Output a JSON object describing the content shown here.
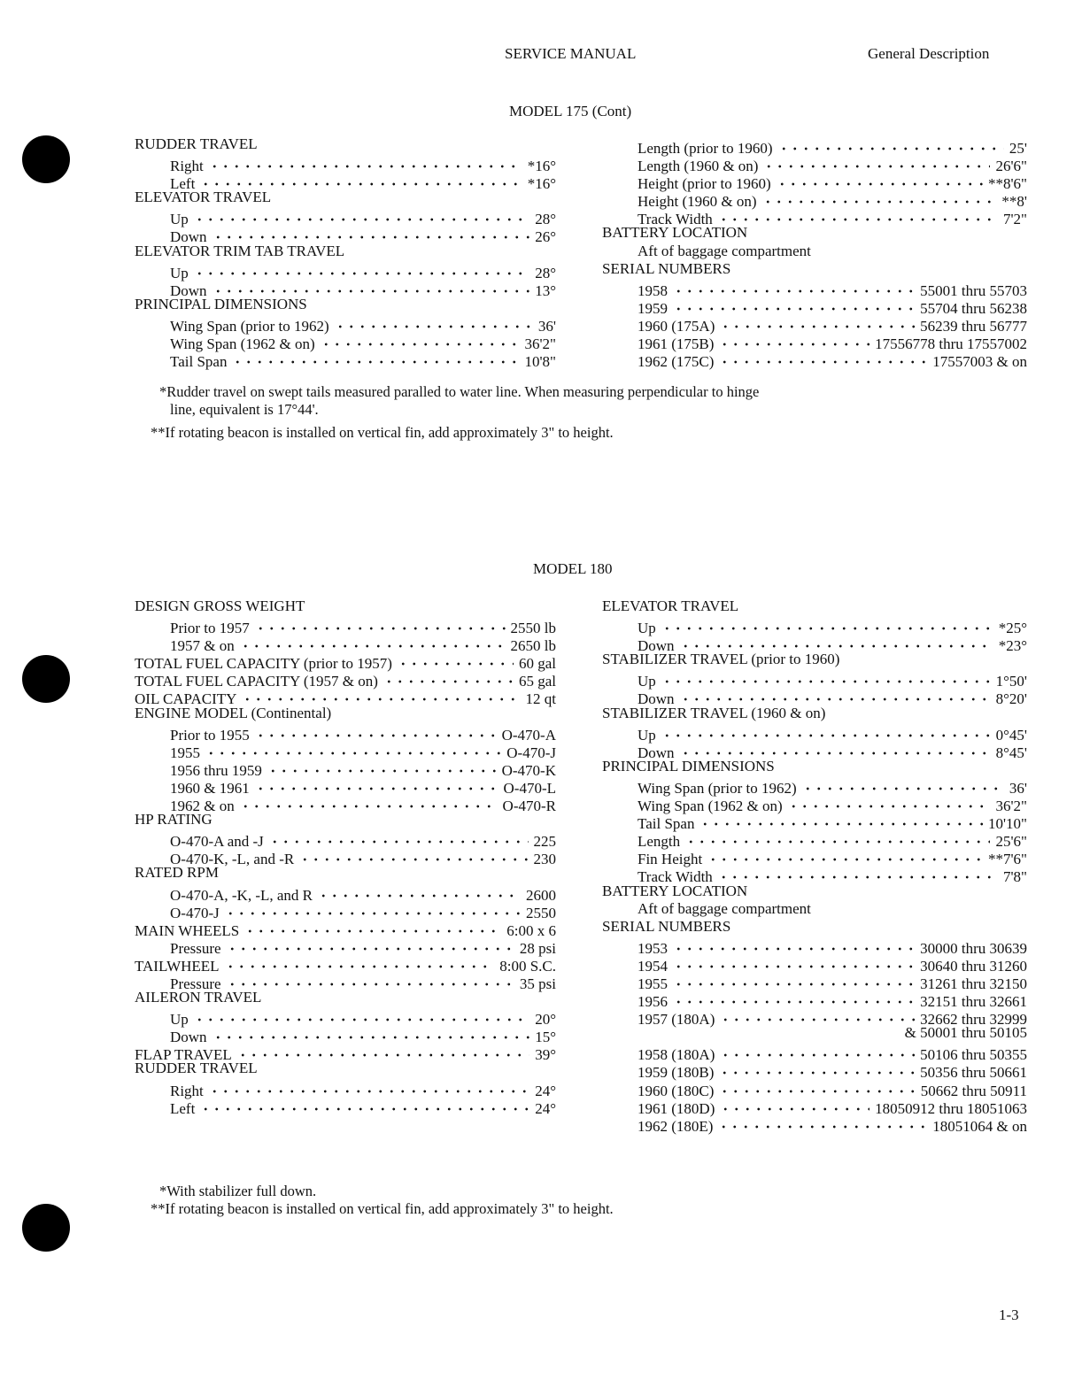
{
  "header": {
    "title": "SERVICE MANUAL",
    "section": "General Description"
  },
  "model175": {
    "title": "MODEL 175 (Cont)",
    "left": [
      {
        "label": "RUDDER TRAVEL",
        "head": true
      },
      {
        "label": "Right",
        "value": "*16°",
        "indent": 1
      },
      {
        "label": "Left",
        "value": "*16°",
        "indent": 1
      },
      {
        "label": "ELEVATOR TRAVEL",
        "head": true
      },
      {
        "label": "Up",
        "value": "28°",
        "indent": 1
      },
      {
        "label": "Down",
        "value": "26°",
        "indent": 1
      },
      {
        "label": "ELEVATOR TRIM TAB TRAVEL",
        "head": true
      },
      {
        "label": "Up",
        "value": "28°",
        "indent": 1
      },
      {
        "label": "Down",
        "value": "13°",
        "indent": 1
      },
      {
        "label": "PRINCIPAL DIMENSIONS",
        "head": true
      },
      {
        "label": "Wing Span (prior to 1962)",
        "value": "36'",
        "indent": 1
      },
      {
        "label": "Wing Span (1962 & on)",
        "value": "36'2\"",
        "indent": 1
      },
      {
        "label": "Tail Span",
        "value": "10'8\"",
        "indent": 1
      }
    ],
    "right": [
      {
        "label": "Length (prior to 1960)",
        "value": "25'",
        "indent": 1
      },
      {
        "label": "Length (1960 & on)",
        "value": "26'6\"",
        "indent": 1
      },
      {
        "label": "Height (prior to 1960)",
        "value": "**8'6\"",
        "indent": 1
      },
      {
        "label": "Height (1960 & on)",
        "value": "**8'",
        "indent": 1
      },
      {
        "label": "Track Width",
        "value": "7'2\"",
        "indent": 1
      },
      {
        "label": "BATTERY LOCATION",
        "head": true
      },
      {
        "label": "Aft of baggage compartment",
        "head": true,
        "indent": 1
      },
      {
        "label": "SERIAL NUMBERS",
        "head": true
      },
      {
        "label": "1958",
        "value": "55001 thru 55703",
        "indent": 1
      },
      {
        "label": "1959",
        "value": "55704 thru 56238",
        "indent": 1
      },
      {
        "label": "1960 (175A)",
        "value": "56239 thru 56777",
        "indent": 1
      },
      {
        "label": "1961 (175B)",
        "value": "17556778 thru 17557002",
        "indent": 1
      },
      {
        "label": "1962 (175C)",
        "value": "17557003 & on",
        "indent": 1
      }
    ],
    "footnotes": [
      "*Rudder travel on swept tails measured paralled to water line.  When measuring perpendicular to hinge",
      "line, equivalent is 17°44'.",
      "**If rotating beacon is installed on vertical fin, add approximately 3\" to height."
    ]
  },
  "model180": {
    "title": "MODEL 180",
    "left": [
      {
        "label": "DESIGN GROSS WEIGHT",
        "head": true
      },
      {
        "label": "Prior to 1957",
        "value": "2550 lb",
        "indent": 1
      },
      {
        "label": "1957 & on",
        "value": "2650 lb",
        "indent": 1
      },
      {
        "label": "TOTAL FUEL CAPACITY (prior to 1957)",
        "value": "60 gal"
      },
      {
        "label": "TOTAL FUEL CAPACITY (1957 & on)",
        "value": "65 gal"
      },
      {
        "label": "OIL CAPACITY",
        "value": "12 qt"
      },
      {
        "label": "ENGINE MODEL (Continental)",
        "head": true
      },
      {
        "label": "Prior to 1955",
        "value": "O-470-A",
        "indent": 1
      },
      {
        "label": "1955",
        "value": "O-470-J",
        "indent": 1
      },
      {
        "label": "1956 thru 1959",
        "value": "O-470-K",
        "indent": 1
      },
      {
        "label": "1960 & 1961",
        "value": "O-470-L",
        "indent": 1
      },
      {
        "label": "1962 & on",
        "value": "O-470-R",
        "indent": 1
      },
      {
        "label": "HP RATING",
        "head": true
      },
      {
        "label": "O-470-A and -J",
        "value": "225",
        "indent": 1
      },
      {
        "label": "O-470-K, -L, and -R",
        "value": "230",
        "indent": 1
      },
      {
        "label": "RATED RPM",
        "head": true
      },
      {
        "label": "O-470-A, -K, -L, and R",
        "value": "2600",
        "indent": 1
      },
      {
        "label": "O-470-J",
        "value": "2550",
        "indent": 1
      },
      {
        "label": "MAIN WHEELS",
        "value": "6:00 x 6"
      },
      {
        "label": "Pressure",
        "value": "28 psi",
        "indent": 1
      },
      {
        "label": "TAILWHEEL",
        "value": "8:00 S.C."
      },
      {
        "label": "Pressure",
        "value": "35 psi",
        "indent": 1
      },
      {
        "label": "AILERON TRAVEL",
        "head": true
      },
      {
        "label": "Up",
        "value": "20°",
        "indent": 1
      },
      {
        "label": "Down",
        "value": "15°",
        "indent": 1
      },
      {
        "label": "FLAP TRAVEL",
        "value": "39°"
      },
      {
        "label": "RUDDER TRAVEL",
        "head": true
      },
      {
        "label": "Right",
        "value": "24°",
        "indent": 1
      },
      {
        "label": "Left",
        "value": "24°",
        "indent": 1
      }
    ],
    "right": [
      {
        "label": "ELEVATOR TRAVEL",
        "head": true
      },
      {
        "label": "Up",
        "value": "*25°",
        "indent": 1
      },
      {
        "label": "Down",
        "value": "*23°",
        "indent": 1
      },
      {
        "label": "STABILIZER TRAVEL (prior to 1960)",
        "head": true
      },
      {
        "label": "Up",
        "value": "1°50'",
        "indent": 1
      },
      {
        "label": "Down",
        "value": "8°20'",
        "indent": 1
      },
      {
        "label": "STABILIZER TRAVEL (1960 & on)",
        "head": true
      },
      {
        "label": "Up",
        "value": "0°45'",
        "indent": 1
      },
      {
        "label": "Down",
        "value": "8°45'",
        "indent": 1
      },
      {
        "label": "PRINCIPAL DIMENSIONS",
        "head": true
      },
      {
        "label": "Wing Span (prior to 1962)",
        "value": "36'",
        "indent": 1
      },
      {
        "label": "Wing Span (1962 & on)",
        "value": "36'2\"",
        "indent": 1
      },
      {
        "label": "Tail Span",
        "value": "10'10\"",
        "indent": 1
      },
      {
        "label": "Length",
        "value": "25'6\"",
        "indent": 1
      },
      {
        "label": "Fin Height",
        "value": "**7'6\"",
        "indent": 1
      },
      {
        "label": "Track Width",
        "value": "7'8\"",
        "indent": 1
      },
      {
        "label": "BATTERY LOCATION",
        "head": true
      },
      {
        "label": "Aft of baggage compartment",
        "head": true,
        "indent": 1
      },
      {
        "label": "SERIAL NUMBERS",
        "head": true
      },
      {
        "label": "1953",
        "value": "30000 thru 30639",
        "indent": 1
      },
      {
        "label": "1954",
        "value": "30640 thru 31260",
        "indent": 1
      },
      {
        "label": "1955",
        "value": "31261 thru 32150",
        "indent": 1
      },
      {
        "label": "1956",
        "value": "32151 thru 32661",
        "indent": 1
      },
      {
        "label": "1957 (180A)",
        "value": "32662 thru 32999",
        "indent": 1
      },
      {
        "value": "& 50001 thru 50105",
        "only": true
      },
      {
        "label": "1958 (180A)",
        "value": "50106 thru 50355",
        "indent": 1
      },
      {
        "label": "1959 (180B)",
        "value": "50356 thru 50661",
        "indent": 1
      },
      {
        "label": "1960 (180C)",
        "value": "50662 thru 50911",
        "indent": 1
      },
      {
        "label": "1961 (180D)",
        "value": "18050912 thru 18051063",
        "indent": 1
      },
      {
        "label": "1962 (180E)",
        "value": "18051064 & on",
        "indent": 1
      }
    ],
    "footnotes": [
      "*With stabilizer full down.",
      "**If rotating beacon is installed on vertical fin, add approximately 3\" to height."
    ]
  },
  "footer": {
    "page_number": "1-3"
  }
}
